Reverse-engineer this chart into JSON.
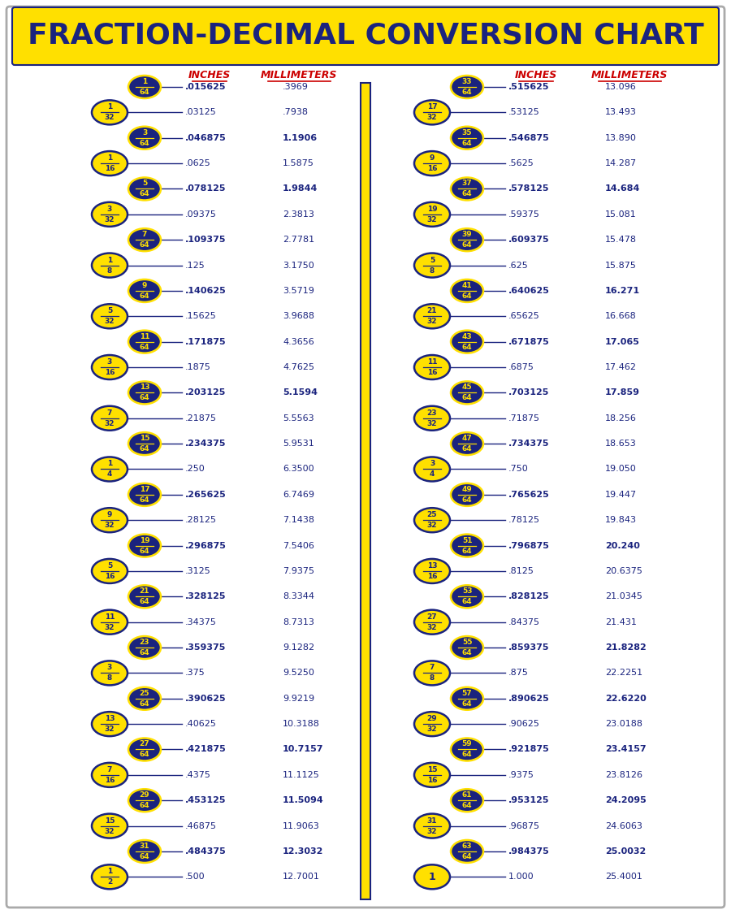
{
  "title": "FRACTION-DECIMAL CONVERSION CHART",
  "title_bg": "#FFE000",
  "title_color": "#1a237e",
  "bg_color": "#ffffff",
  "col_headers": [
    "INCHES",
    "MILLIMETERS",
    "INCHES",
    "MILLIMETERS"
  ],
  "header_color": "#cc0000",
  "left_data": [
    {
      "num": "1",
      "den": "64",
      "blue": true,
      "inches": ".015625",
      "mm": ".3969",
      "bold_in": true,
      "bold_mm": false
    },
    {
      "num": "1",
      "den": "32",
      "blue": false,
      "inches": ".03125",
      "mm": ".7938",
      "bold_in": false,
      "bold_mm": false
    },
    {
      "num": "3",
      "den": "64",
      "blue": true,
      "inches": ".046875",
      "mm": "1.1906",
      "bold_in": true,
      "bold_mm": true
    },
    {
      "num": "1",
      "den": "16",
      "blue": false,
      "inches": ".0625",
      "mm": "1.5875",
      "bold_in": false,
      "bold_mm": false
    },
    {
      "num": "5",
      "den": "64",
      "blue": true,
      "inches": ".078125",
      "mm": "1.9844",
      "bold_in": true,
      "bold_mm": true
    },
    {
      "num": "3",
      "den": "32",
      "blue": false,
      "inches": ".09375",
      "mm": "2.3813",
      "bold_in": false,
      "bold_mm": false
    },
    {
      "num": "7",
      "den": "64",
      "blue": true,
      "inches": ".109375",
      "mm": "2.7781",
      "bold_in": true,
      "bold_mm": false
    },
    {
      "num": "1",
      "den": "8",
      "blue": false,
      "inches": ".125",
      "mm": "3.1750",
      "bold_in": false,
      "bold_mm": false
    },
    {
      "num": "9",
      "den": "64",
      "blue": true,
      "inches": ".140625",
      "mm": "3.5719",
      "bold_in": true,
      "bold_mm": false
    },
    {
      "num": "5",
      "den": "32",
      "blue": false,
      "inches": ".15625",
      "mm": "3.9688",
      "bold_in": false,
      "bold_mm": false
    },
    {
      "num": "11",
      "den": "64",
      "blue": true,
      "inches": ".171875",
      "mm": "4.3656",
      "bold_in": true,
      "bold_mm": false
    },
    {
      "num": "3",
      "den": "16",
      "blue": false,
      "inches": ".1875",
      "mm": "4.7625",
      "bold_in": false,
      "bold_mm": false
    },
    {
      "num": "13",
      "den": "64",
      "blue": true,
      "inches": ".203125",
      "mm": "5.1594",
      "bold_in": true,
      "bold_mm": true
    },
    {
      "num": "7",
      "den": "32",
      "blue": false,
      "inches": ".21875",
      "mm": "5.5563",
      "bold_in": false,
      "bold_mm": false
    },
    {
      "num": "15",
      "den": "64",
      "blue": true,
      "inches": ".234375",
      "mm": "5.9531",
      "bold_in": true,
      "bold_mm": false
    },
    {
      "num": "1",
      "den": "4",
      "blue": false,
      "inches": ".250",
      "mm": "6.3500",
      "bold_in": false,
      "bold_mm": false
    },
    {
      "num": "17",
      "den": "64",
      "blue": true,
      "inches": ".265625",
      "mm": "6.7469",
      "bold_in": true,
      "bold_mm": false
    },
    {
      "num": "9",
      "den": "32",
      "blue": false,
      "inches": ".28125",
      "mm": "7.1438",
      "bold_in": false,
      "bold_mm": false
    },
    {
      "num": "19",
      "den": "64",
      "blue": true,
      "inches": ".296875",
      "mm": "7.5406",
      "bold_in": true,
      "bold_mm": false
    },
    {
      "num": "5",
      "den": "16",
      "blue": false,
      "inches": ".3125",
      "mm": "7.9375",
      "bold_in": false,
      "bold_mm": false
    },
    {
      "num": "21",
      "den": "64",
      "blue": true,
      "inches": ".328125",
      "mm": "8.3344",
      "bold_in": true,
      "bold_mm": false
    },
    {
      "num": "11",
      "den": "32",
      "blue": false,
      "inches": ".34375",
      "mm": "8.7313",
      "bold_in": false,
      "bold_mm": false
    },
    {
      "num": "23",
      "den": "64",
      "blue": true,
      "inches": ".359375",
      "mm": "9.1282",
      "bold_in": true,
      "bold_mm": false
    },
    {
      "num": "3",
      "den": "8",
      "blue": false,
      "inches": ".375",
      "mm": "9.5250",
      "bold_in": false,
      "bold_mm": false
    },
    {
      "num": "25",
      "den": "64",
      "blue": true,
      "inches": ".390625",
      "mm": "9.9219",
      "bold_in": true,
      "bold_mm": false
    },
    {
      "num": "13",
      "den": "32",
      "blue": false,
      "inches": ".40625",
      "mm": "10.3188",
      "bold_in": false,
      "bold_mm": false
    },
    {
      "num": "27",
      "den": "64",
      "blue": true,
      "inches": ".421875",
      "mm": "10.7157",
      "bold_in": true,
      "bold_mm": true
    },
    {
      "num": "7",
      "den": "16",
      "blue": false,
      "inches": ".4375",
      "mm": "11.1125",
      "bold_in": false,
      "bold_mm": false
    },
    {
      "num": "29",
      "den": "64",
      "blue": true,
      "inches": ".453125",
      "mm": "11.5094",
      "bold_in": true,
      "bold_mm": true
    },
    {
      "num": "15",
      "den": "32",
      "blue": false,
      "inches": ".46875",
      "mm": "11.9063",
      "bold_in": false,
      "bold_mm": false
    },
    {
      "num": "31",
      "den": "64",
      "blue": true,
      "inches": ".484375",
      "mm": "12.3032",
      "bold_in": true,
      "bold_mm": true
    },
    {
      "num": "1",
      "den": "2",
      "blue": false,
      "inches": ".500",
      "mm": "12.7001",
      "bold_in": false,
      "bold_mm": false
    }
  ],
  "right_data": [
    {
      "num": "33",
      "den": "64",
      "blue": true,
      "inches": ".515625",
      "mm": "13.096",
      "bold_in": true,
      "bold_mm": false
    },
    {
      "num": "17",
      "den": "32",
      "blue": false,
      "inches": ".53125",
      "mm": "13.493",
      "bold_in": false,
      "bold_mm": false
    },
    {
      "num": "35",
      "den": "64",
      "blue": true,
      "inches": ".546875",
      "mm": "13.890",
      "bold_in": true,
      "bold_mm": false
    },
    {
      "num": "9",
      "den": "16",
      "blue": false,
      "inches": ".5625",
      "mm": "14.287",
      "bold_in": false,
      "bold_mm": false
    },
    {
      "num": "37",
      "den": "64",
      "blue": true,
      "inches": ".578125",
      "mm": "14.684",
      "bold_in": true,
      "bold_mm": true
    },
    {
      "num": "19",
      "den": "32",
      "blue": false,
      "inches": ".59375",
      "mm": "15.081",
      "bold_in": false,
      "bold_mm": false
    },
    {
      "num": "39",
      "den": "64",
      "blue": true,
      "inches": ".609375",
      "mm": "15.478",
      "bold_in": true,
      "bold_mm": false
    },
    {
      "num": "5",
      "den": "8",
      "blue": false,
      "inches": ".625",
      "mm": "15.875",
      "bold_in": false,
      "bold_mm": false
    },
    {
      "num": "41",
      "den": "64",
      "blue": true,
      "inches": ".640625",
      "mm": "16.271",
      "bold_in": true,
      "bold_mm": true
    },
    {
      "num": "21",
      "den": "32",
      "blue": false,
      "inches": ".65625",
      "mm": "16.668",
      "bold_in": false,
      "bold_mm": false
    },
    {
      "num": "43",
      "den": "64",
      "blue": true,
      "inches": ".671875",
      "mm": "17.065",
      "bold_in": true,
      "bold_mm": true
    },
    {
      "num": "11",
      "den": "16",
      "blue": false,
      "inches": ".6875",
      "mm": "17.462",
      "bold_in": false,
      "bold_mm": false
    },
    {
      "num": "45",
      "den": "64",
      "blue": true,
      "inches": ".703125",
      "mm": "17.859",
      "bold_in": true,
      "bold_mm": true
    },
    {
      "num": "23",
      "den": "32",
      "blue": false,
      "inches": ".71875",
      "mm": "18.256",
      "bold_in": false,
      "bold_mm": false
    },
    {
      "num": "47",
      "den": "64",
      "blue": true,
      "inches": ".734375",
      "mm": "18.653",
      "bold_in": true,
      "bold_mm": false
    },
    {
      "num": "3",
      "den": "4",
      "blue": false,
      "inches": ".750",
      "mm": "19.050",
      "bold_in": false,
      "bold_mm": false
    },
    {
      "num": "49",
      "den": "64",
      "blue": true,
      "inches": ".765625",
      "mm": "19.447",
      "bold_in": true,
      "bold_mm": false
    },
    {
      "num": "25",
      "den": "32",
      "blue": false,
      "inches": ".78125",
      "mm": "19.843",
      "bold_in": false,
      "bold_mm": false
    },
    {
      "num": "51",
      "den": "64",
      "blue": true,
      "inches": ".796875",
      "mm": "20.240",
      "bold_in": true,
      "bold_mm": true
    },
    {
      "num": "13",
      "den": "16",
      "blue": false,
      "inches": ".8125",
      "mm": "20.6375",
      "bold_in": false,
      "bold_mm": false
    },
    {
      "num": "53",
      "den": "64",
      "blue": true,
      "inches": ".828125",
      "mm": "21.0345",
      "bold_in": true,
      "bold_mm": false
    },
    {
      "num": "27",
      "den": "32",
      "blue": false,
      "inches": ".84375",
      "mm": "21.431",
      "bold_in": false,
      "bold_mm": false
    },
    {
      "num": "55",
      "den": "64",
      "blue": true,
      "inches": ".859375",
      "mm": "21.8282",
      "bold_in": true,
      "bold_mm": true
    },
    {
      "num": "7",
      "den": "8",
      "blue": false,
      "inches": ".875",
      "mm": "22.2251",
      "bold_in": false,
      "bold_mm": false
    },
    {
      "num": "57",
      "den": "64",
      "blue": true,
      "inches": ".890625",
      "mm": "22.6220",
      "bold_in": true,
      "bold_mm": true
    },
    {
      "num": "29",
      "den": "32",
      "blue": false,
      "inches": ".90625",
      "mm": "23.0188",
      "bold_in": false,
      "bold_mm": false
    },
    {
      "num": "59",
      "den": "64",
      "blue": true,
      "inches": ".921875",
      "mm": "23.4157",
      "bold_in": true,
      "bold_mm": true
    },
    {
      "num": "15",
      "den": "16",
      "blue": false,
      "inches": ".9375",
      "mm": "23.8126",
      "bold_in": false,
      "bold_mm": false
    },
    {
      "num": "61",
      "den": "64",
      "blue": true,
      "inches": ".953125",
      "mm": "24.2095",
      "bold_in": true,
      "bold_mm": true
    },
    {
      "num": "31",
      "den": "32",
      "blue": false,
      "inches": ".96875",
      "mm": "24.6063",
      "bold_in": false,
      "bold_mm": false
    },
    {
      "num": "63",
      "den": "64",
      "blue": true,
      "inches": ".984375",
      "mm": "25.0032",
      "bold_in": true,
      "bold_mm": true
    },
    {
      "num": "1",
      "den": "",
      "blue": false,
      "inches": "1.000",
      "mm": "25.4001",
      "bold_in": false,
      "bold_mm": false
    }
  ],
  "blue_ellipse_color": "#1a237e",
  "yellow_ellipse_color": "#FFE000",
  "ellipse_text_yellow": "#FFE000",
  "ellipse_text_blue": "#1a237e",
  "line_color": "#1a237e",
  "text_color": "#1a237e",
  "divider_color": "#FFE000",
  "divider_border": "#1a237e"
}
